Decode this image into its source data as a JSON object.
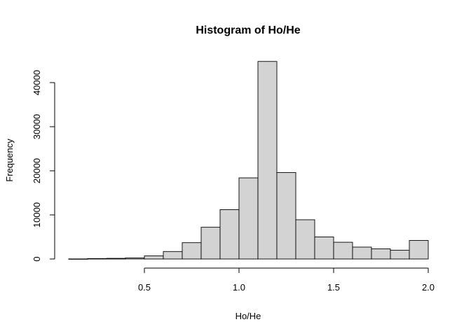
{
  "chart_data": {
    "type": "bar",
    "title": "Histogram of Ho/He",
    "xlabel": "Ho/He",
    "ylabel": "Frequency",
    "bar_color": "#D3D3D3",
    "grid": false,
    "xlim": [
      0.1,
      2.0
    ],
    "ylim": [
      0,
      45000
    ],
    "x_ticks": [
      0.5,
      1.0,
      1.5,
      2.0
    ],
    "x_tick_labels": [
      "0.5",
      "1.0",
      "1.5",
      "2.0"
    ],
    "y_ticks": [
      0,
      10000,
      20000,
      30000,
      40000
    ],
    "y_tick_labels": [
      "0",
      "10000",
      "20000",
      "30000",
      "40000"
    ],
    "bins": [
      {
        "x0": 0.1,
        "x1": 0.2,
        "value": 20
      },
      {
        "x0": 0.2,
        "x1": 0.3,
        "value": 100
      },
      {
        "x0": 0.3,
        "x1": 0.4,
        "value": 150
      },
      {
        "x0": 0.4,
        "x1": 0.5,
        "value": 250
      },
      {
        "x0": 0.5,
        "x1": 0.6,
        "value": 700
      },
      {
        "x0": 0.6,
        "x1": 0.7,
        "value": 1700
      },
      {
        "x0": 0.7,
        "x1": 0.8,
        "value": 3700
      },
      {
        "x0": 0.8,
        "x1": 0.9,
        "value": 7200
      },
      {
        "x0": 0.9,
        "x1": 1.0,
        "value": 11200
      },
      {
        "x0": 1.0,
        "x1": 1.1,
        "value": 18400
      },
      {
        "x0": 1.1,
        "x1": 1.2,
        "value": 44800
      },
      {
        "x0": 1.2,
        "x1": 1.3,
        "value": 19600
      },
      {
        "x0": 1.3,
        "x1": 1.4,
        "value": 8900
      },
      {
        "x0": 1.4,
        "x1": 1.5,
        "value": 5000
      },
      {
        "x0": 1.5,
        "x1": 1.6,
        "value": 3800
      },
      {
        "x0": 1.6,
        "x1": 1.7,
        "value": 2700
      },
      {
        "x0": 1.7,
        "x1": 1.8,
        "value": 2300
      },
      {
        "x0": 1.8,
        "x1": 1.9,
        "value": 2000
      },
      {
        "x0": 1.9,
        "x1": 2.0,
        "value": 4200
      }
    ]
  }
}
